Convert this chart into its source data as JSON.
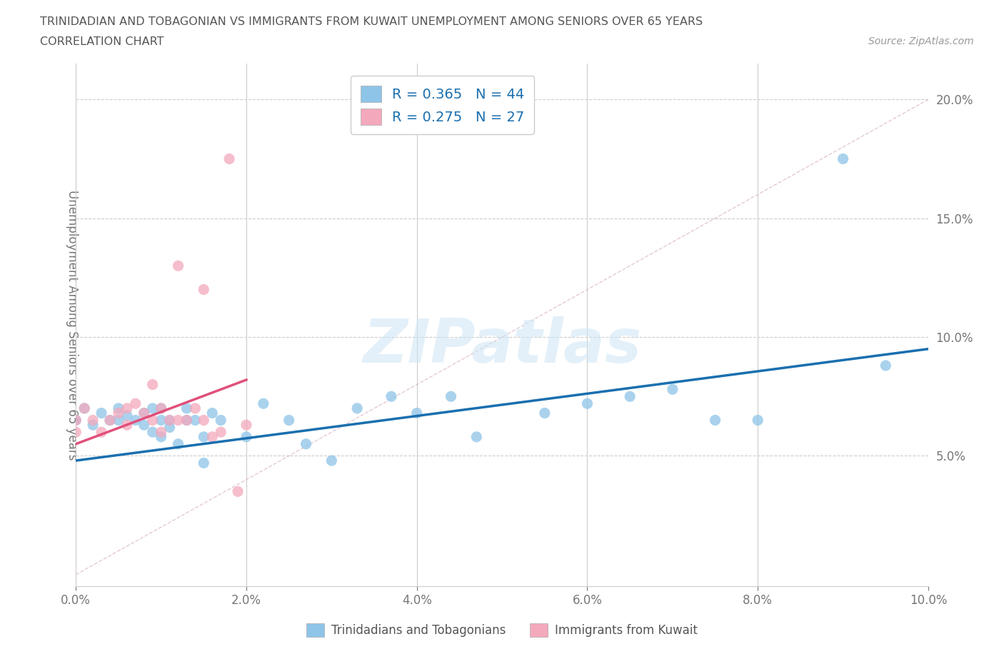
{
  "title_line1": "TRINIDADIAN AND TOBAGONIAN VS IMMIGRANTS FROM KUWAIT UNEMPLOYMENT AMONG SENIORS OVER 65 YEARS",
  "title_line2": "CORRELATION CHART",
  "source_text": "Source: ZipAtlas.com",
  "ylabel": "Unemployment Among Seniors over 65 years",
  "xlim": [
    0.0,
    0.1
  ],
  "ylim": [
    -0.005,
    0.215
  ],
  "xtick_labels": [
    "0.0%",
    "2.0%",
    "4.0%",
    "6.0%",
    "8.0%",
    "10.0%"
  ],
  "xtick_vals": [
    0.0,
    0.02,
    0.04,
    0.06,
    0.08,
    0.1
  ],
  "ytick_labels": [
    "5.0%",
    "10.0%",
    "15.0%",
    "20.0%"
  ],
  "ytick_vals": [
    0.05,
    0.1,
    0.15,
    0.2
  ],
  "blue_color": "#8ec4e8",
  "pink_color": "#f4a8bc",
  "blue_line_color": "#1a6faf",
  "pink_line_color": "#e0507a",
  "ref_line_color": "#cccccc",
  "legend_R1": "R = 0.365",
  "legend_N1": "N = 44",
  "legend_R2": "R = 0.275",
  "legend_N2": "N = 27",
  "blue_scatter_x": [
    0.0,
    0.001,
    0.002,
    0.003,
    0.004,
    0.005,
    0.005,
    0.006,
    0.007,
    0.008,
    0.008,
    0.009,
    0.009,
    0.01,
    0.01,
    0.01,
    0.011,
    0.011,
    0.012,
    0.013,
    0.013,
    0.014,
    0.015,
    0.015,
    0.016,
    0.017,
    0.02,
    0.022,
    0.025,
    0.027,
    0.03,
    0.033,
    0.037,
    0.04,
    0.044,
    0.047,
    0.055,
    0.06,
    0.065,
    0.07,
    0.075,
    0.08,
    0.09,
    0.095
  ],
  "blue_scatter_y": [
    0.065,
    0.07,
    0.063,
    0.068,
    0.065,
    0.065,
    0.07,
    0.067,
    0.065,
    0.063,
    0.068,
    0.06,
    0.07,
    0.058,
    0.065,
    0.07,
    0.065,
    0.062,
    0.055,
    0.065,
    0.07,
    0.065,
    0.047,
    0.058,
    0.068,
    0.065,
    0.058,
    0.072,
    0.065,
    0.055,
    0.048,
    0.07,
    0.075,
    0.068,
    0.075,
    0.058,
    0.068,
    0.072,
    0.075,
    0.078,
    0.065,
    0.065,
    0.175,
    0.088
  ],
  "pink_scatter_x": [
    0.0,
    0.0,
    0.001,
    0.002,
    0.003,
    0.004,
    0.005,
    0.006,
    0.006,
    0.007,
    0.008,
    0.009,
    0.009,
    0.01,
    0.01,
    0.011,
    0.012,
    0.012,
    0.013,
    0.014,
    0.015,
    0.015,
    0.016,
    0.017,
    0.018,
    0.019,
    0.02
  ],
  "pink_scatter_y": [
    0.065,
    0.06,
    0.07,
    0.065,
    0.06,
    0.065,
    0.068,
    0.063,
    0.07,
    0.072,
    0.068,
    0.065,
    0.08,
    0.06,
    0.07,
    0.065,
    0.065,
    0.13,
    0.065,
    0.07,
    0.065,
    0.12,
    0.058,
    0.06,
    0.175,
    0.035,
    0.063
  ],
  "blue_trend_x": [
    0.0,
    0.1
  ],
  "blue_trend_y": [
    0.048,
    0.095
  ],
  "pink_trend_x": [
    0.0,
    0.02
  ],
  "pink_trend_y": [
    0.055,
    0.082
  ],
  "ref_line_x": [
    0.0,
    0.1
  ],
  "ref_line_y": [
    0.0,
    0.2
  ],
  "ref_line_dashed_color": "#ddbbcc"
}
